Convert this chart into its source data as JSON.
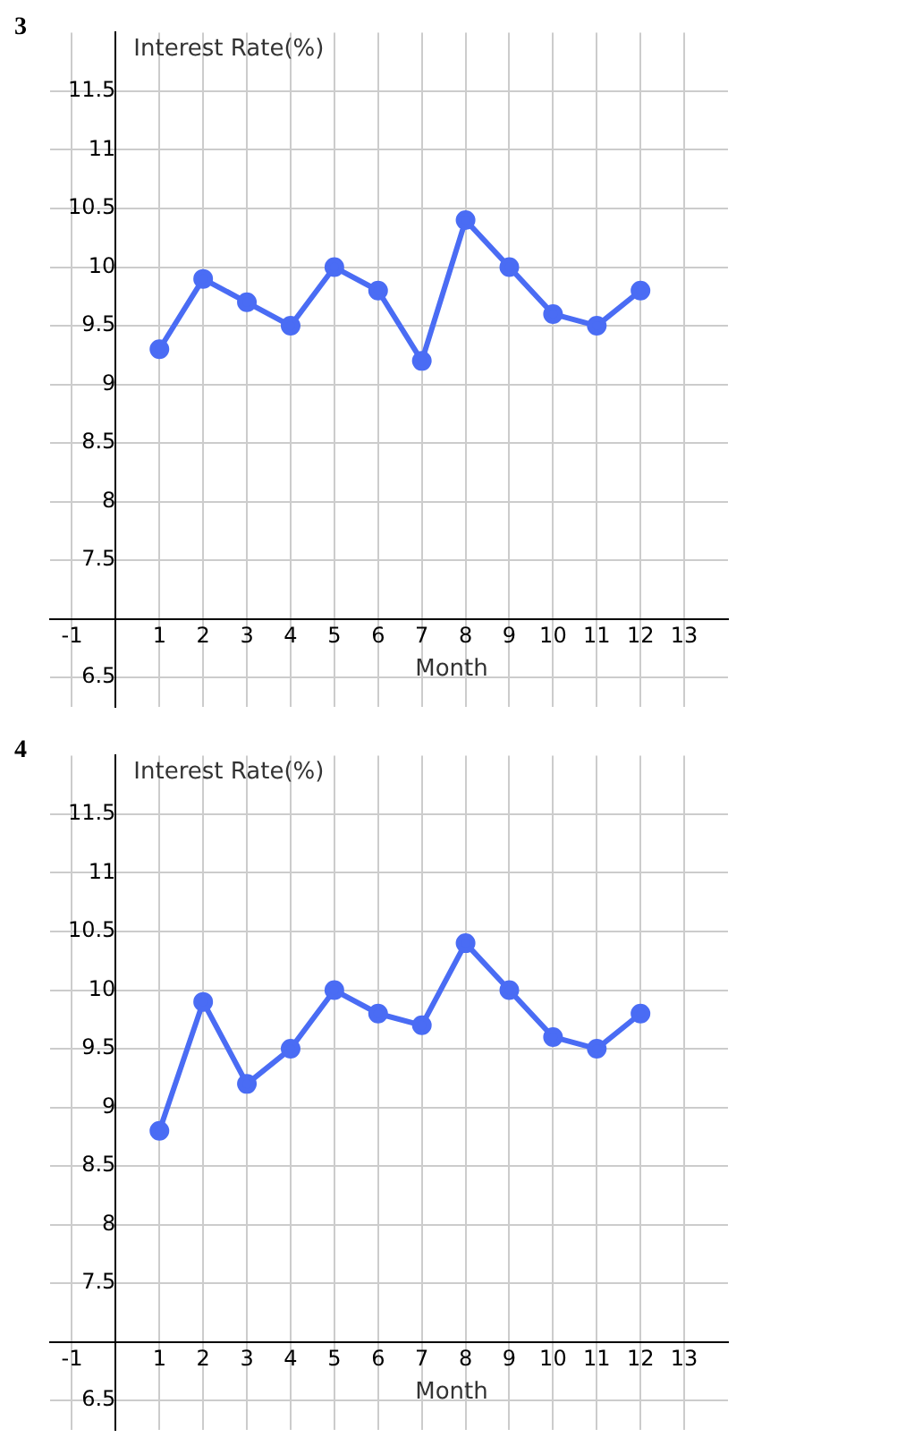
{
  "chart_data": [
    {
      "type": "line",
      "title": "3",
      "xlabel": "Month",
      "ylabel": "Interest Rate(%)",
      "x": [
        1,
        2,
        3,
        4,
        5,
        6,
        7,
        8,
        9,
        10,
        11,
        12
      ],
      "series": [
        {
          "color": "#4a6cf4",
          "values": [
            9.3,
            9.9,
            9.7,
            9.5,
            10.0,
            9.8,
            9.2,
            10.4,
            10.0,
            9.6,
            9.5,
            9.8
          ]
        }
      ],
      "xlim": [
        -1.5,
        14
      ],
      "ylim": [
        6.25,
        12
      ],
      "xticks": [
        -1,
        1,
        2,
        3,
        4,
        5,
        6,
        7,
        8,
        9,
        10,
        11,
        12,
        13
      ],
      "yticks": [
        6.5,
        7.5,
        8,
        8.5,
        9,
        9.5,
        10,
        10.5,
        11,
        11.5
      ],
      "grid": true,
      "legend": false,
      "marker": "circle",
      "line_style": "solid"
    },
    {
      "type": "line",
      "title": "4",
      "xlabel": "Month",
      "ylabel": "Interest Rate(%)",
      "x": [
        1,
        2,
        3,
        4,
        5,
        6,
        7,
        8,
        9,
        10,
        11,
        12
      ],
      "series": [
        {
          "color": "#4a6cf4",
          "values": [
            8.8,
            9.9,
            9.2,
            9.5,
            10.0,
            9.8,
            9.7,
            10.4,
            10.0,
            9.6,
            9.5,
            9.8
          ]
        }
      ],
      "xlim": [
        -1.5,
        14
      ],
      "ylim": [
        6.25,
        12
      ],
      "xticks": [
        -1,
        1,
        2,
        3,
        4,
        5,
        6,
        7,
        8,
        9,
        10,
        11,
        12,
        13
      ],
      "yticks": [
        6.5,
        7.5,
        8,
        8.5,
        9,
        9.5,
        10,
        10.5,
        11,
        11.5
      ],
      "grid": true,
      "legend": false,
      "marker": "circle",
      "line_style": "solid"
    }
  ]
}
